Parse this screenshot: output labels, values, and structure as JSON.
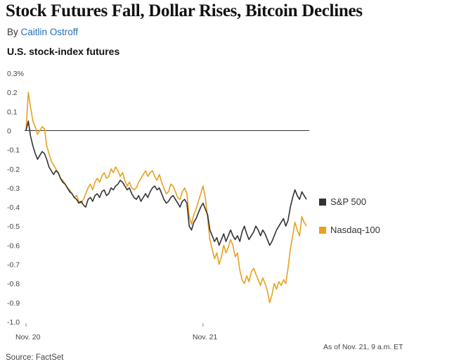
{
  "article": {
    "headline": "Stock Futures Fall, Dollar Rises, Bitcoin Declines",
    "byline_prefix": "By ",
    "author": "Caitlin Ostroff"
  },
  "footer": {
    "source": "Source: FactSet",
    "as_of": "As of Nov. 21, 9 a.m. ET"
  },
  "colors": {
    "sp500": "#333333",
    "nasdaq": "#e8a020",
    "zero_line": "#333333",
    "tick_text": "#444444",
    "author_link": "#1f6db5"
  },
  "chart_data": {
    "type": "line",
    "title": "U.S. stock-index futures",
    "xlabel": "",
    "ylabel": "",
    "y_unit": "%",
    "ylim": [
      -1.0,
      0.3
    ],
    "yticks": [
      0.3,
      0.2,
      0.1,
      0,
      -0.1,
      -0.2,
      -0.3,
      -0.4,
      -0.5,
      -0.6,
      -0.7,
      -0.8,
      -0.9,
      -1.0
    ],
    "ytick_labels": [
      "0.3%",
      "0.2",
      "0.1",
      "0",
      "-0.1",
      "-0.2",
      "-0.3",
      "-0.4",
      "-0.5",
      "-0.6",
      "-0.7",
      "-0.8",
      "-0.9",
      "-1.0"
    ],
    "x_axis": {
      "start": "Nov. 20, 9 a.m. ET",
      "end": "Nov. 21, 9 a.m. ET",
      "tick_labels": [
        {
          "label": "Nov. 20",
          "hours_from_start": 0
        },
        {
          "label": "Nov. 21",
          "hours_from_start": 15
        }
      ],
      "total_hours": 24
    },
    "grid": false,
    "zero_line": true,
    "legend_placement": "right",
    "series": [
      {
        "name": "S&P 500",
        "color": "#333333",
        "values": [
          0.0,
          0.05,
          -0.03,
          -0.08,
          -0.12,
          -0.15,
          -0.13,
          -0.11,
          -0.12,
          -0.15,
          -0.19,
          -0.21,
          -0.23,
          -0.21,
          -0.22,
          -0.25,
          -0.27,
          -0.28,
          -0.3,
          -0.32,
          -0.33,
          -0.35,
          -0.36,
          -0.38,
          -0.37,
          -0.39,
          -0.4,
          -0.36,
          -0.35,
          -0.37,
          -0.34,
          -0.33,
          -0.35,
          -0.32,
          -0.31,
          -0.34,
          -0.33,
          -0.3,
          -0.31,
          -0.29,
          -0.28,
          -0.26,
          -0.27,
          -0.29,
          -0.31,
          -0.3,
          -0.33,
          -0.35,
          -0.36,
          -0.34,
          -0.37,
          -0.35,
          -0.33,
          -0.35,
          -0.32,
          -0.3,
          -0.29,
          -0.31,
          -0.3,
          -0.33,
          -0.36,
          -0.38,
          -0.37,
          -0.35,
          -0.34,
          -0.36,
          -0.38,
          -0.4,
          -0.37,
          -0.36,
          -0.38,
          -0.5,
          -0.52,
          -0.48,
          -0.46,
          -0.43,
          -0.4,
          -0.38,
          -0.41,
          -0.44,
          -0.52,
          -0.55,
          -0.58,
          -0.56,
          -0.6,
          -0.57,
          -0.54,
          -0.58,
          -0.55,
          -0.52,
          -0.55,
          -0.57,
          -0.55,
          -0.58,
          -0.53,
          -0.5,
          -0.54,
          -0.57,
          -0.55,
          -0.53,
          -0.5,
          -0.52,
          -0.55,
          -0.52,
          -0.54,
          -0.57,
          -0.6,
          -0.58,
          -0.55,
          -0.52,
          -0.5,
          -0.48,
          -0.46,
          -0.5,
          -0.47,
          -0.4,
          -0.35,
          -0.31,
          -0.34,
          -0.36,
          -0.32,
          -0.34,
          -0.36
        ]
      },
      {
        "name": "Nasdaq-100",
        "color": "#e8a020",
        "values": [
          0.0,
          0.2,
          0.12,
          0.05,
          0.02,
          -0.02,
          0.0,
          0.02,
          0.01,
          -0.08,
          -0.12,
          -0.16,
          -0.18,
          -0.2,
          -0.22,
          -0.25,
          -0.26,
          -0.28,
          -0.3,
          -0.31,
          -0.33,
          -0.35,
          -0.34,
          -0.37,
          -0.38,
          -0.36,
          -0.33,
          -0.3,
          -0.28,
          -0.31,
          -0.27,
          -0.25,
          -0.27,
          -0.24,
          -0.22,
          -0.25,
          -0.24,
          -0.2,
          -0.22,
          -0.19,
          -0.21,
          -0.24,
          -0.22,
          -0.26,
          -0.29,
          -0.27,
          -0.3,
          -0.31,
          -0.3,
          -0.27,
          -0.25,
          -0.23,
          -0.21,
          -0.24,
          -0.22,
          -0.21,
          -0.24,
          -0.26,
          -0.23,
          -0.27,
          -0.3,
          -0.33,
          -0.32,
          -0.28,
          -0.29,
          -0.32,
          -0.35,
          -0.36,
          -0.32,
          -0.3,
          -0.33,
          -0.45,
          -0.49,
          -0.44,
          -0.41,
          -0.37,
          -0.33,
          -0.29,
          -0.35,
          -0.46,
          -0.57,
          -0.62,
          -0.67,
          -0.64,
          -0.7,
          -0.66,
          -0.6,
          -0.64,
          -0.61,
          -0.57,
          -0.6,
          -0.66,
          -0.64,
          -0.73,
          -0.78,
          -0.8,
          -0.76,
          -0.79,
          -0.74,
          -0.72,
          -0.75,
          -0.78,
          -0.81,
          -0.77,
          -0.8,
          -0.84,
          -0.9,
          -0.86,
          -0.8,
          -0.83,
          -0.79,
          -0.81,
          -0.78,
          -0.8,
          -0.72,
          -0.62,
          -0.55,
          -0.48,
          -0.52,
          -0.55,
          -0.45,
          -0.48,
          -0.5
        ]
      }
    ]
  }
}
